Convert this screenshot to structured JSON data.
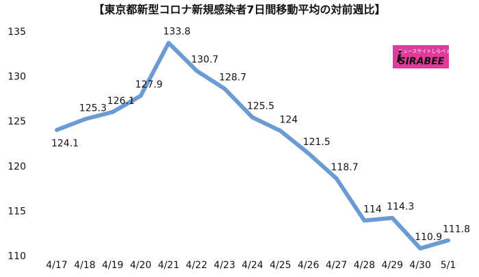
{
  "chart_data": {
    "type": "line",
    "title": "【東京都新型コロナ新規感染者7日間移動平均の対前週比】",
    "categories": [
      "4/17",
      "4/18",
      "4/19",
      "4/20",
      "4/21",
      "4/22",
      "4/23",
      "4/24",
      "4/25",
      "4/26",
      "4/27",
      "4/28",
      "4/29",
      "4/30",
      "5/1"
    ],
    "series": [
      {
        "name": "対前週比",
        "color": "#6b9bd2",
        "values": [
          124.1,
          125.3,
          126.1,
          127.9,
          133.8,
          130.7,
          128.7,
          125.5,
          124,
          121.5,
          118.7,
          114,
          114.3,
          110.9,
          111.8
        ]
      }
    ],
    "ylim": [
      110,
      135
    ],
    "yticks": [
      110,
      115,
      120,
      125,
      130,
      135
    ],
    "grid": false,
    "data_labels": true
  },
  "logo": {
    "tagline": "ニュースサイトしらべぇ",
    "name": "SIRABEE"
  }
}
